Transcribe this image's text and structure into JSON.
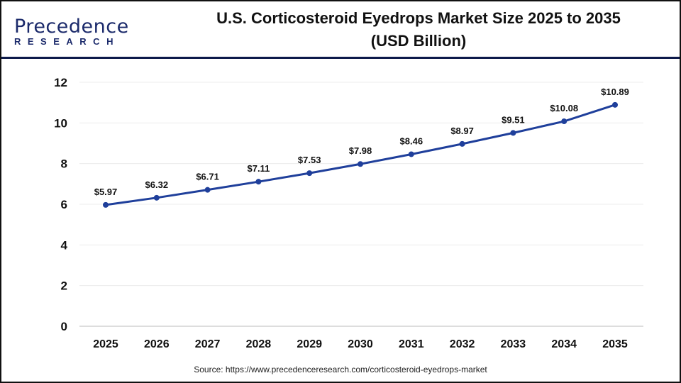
{
  "logo": {
    "line1": "Precedence",
    "line2": "RESEARCH"
  },
  "chart_data": {
    "type": "line",
    "title": "U.S. Corticosteroid Eyedrops Market Size 2025 to 2035",
    "subtitle": "(USD Billion)",
    "categories": [
      "2025",
      "2026",
      "2027",
      "2028",
      "2029",
      "2030",
      "2031",
      "2032",
      "2033",
      "2034",
      "2035"
    ],
    "values": [
      5.97,
      6.32,
      6.71,
      7.11,
      7.53,
      7.98,
      8.46,
      8.97,
      9.51,
      10.08,
      10.89
    ],
    "data_labels": [
      "$5.97",
      "$6.32",
      "$6.71",
      "$7.11",
      "$7.53",
      "$7.98",
      "$8.46",
      "$8.97",
      "$9.51",
      "$10.08",
      "$10.89"
    ],
    "yticks": [
      "0",
      "2",
      "4",
      "6",
      "8",
      "10",
      "12"
    ],
    "ylim": [
      0,
      12
    ],
    "grid": true,
    "line_color": "#1f3f9b"
  },
  "source": "Source: https://www.precedenceresearch.com/corticosteroid-eyedrops-market"
}
